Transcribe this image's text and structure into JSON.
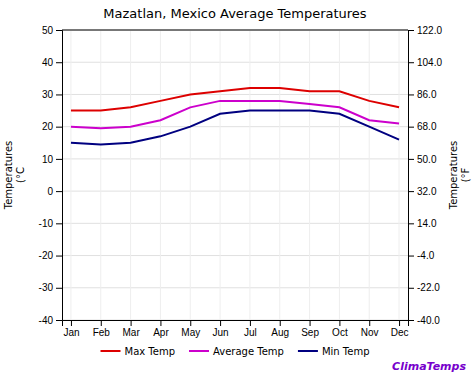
{
  "chart_data": {
    "type": "line",
    "title": "Mazatlan, Mexico Average Temperatures",
    "categories": [
      "Jan",
      "Feb",
      "Mar",
      "Apr",
      "May",
      "Jun",
      "Jul",
      "Aug",
      "Sep",
      "Oct",
      "Nov",
      "Dec"
    ],
    "series": [
      {
        "name": "Max Temp",
        "color": "#dd0000",
        "values": [
          25,
          25,
          26,
          28,
          30,
          31,
          32,
          32,
          31,
          31,
          28,
          26
        ]
      },
      {
        "name": "Average Temp",
        "color": "#cc00cc",
        "values": [
          20,
          19.5,
          20,
          22,
          26,
          28,
          28,
          28,
          27,
          26,
          22,
          21
        ]
      },
      {
        "name": "Min Temp",
        "color": "#000080",
        "values": [
          15,
          14.5,
          15,
          17,
          20,
          24,
          25,
          25,
          25,
          24,
          20,
          16
        ]
      }
    ],
    "ylabel": "Temperatures\n(°C",
    "y2label": "Temperatures\n(°F",
    "ylim": [
      -40,
      50
    ],
    "yticks": [
      -40,
      -30,
      -20,
      -10,
      0,
      10,
      20,
      30,
      40,
      50
    ],
    "y2lim": [
      -40,
      122
    ],
    "y2ticks": [
      {
        "value": -40,
        "label": "-40.0"
      },
      {
        "value": -22,
        "label": "-22.0"
      },
      {
        "value": -4,
        "label": "-4.0"
      },
      {
        "value": 14,
        "label": "14.0"
      },
      {
        "value": 32,
        "label": "32.0"
      },
      {
        "value": 50,
        "label": "50.0"
      },
      {
        "value": 68,
        "label": "68.0"
      },
      {
        "value": 86,
        "label": "86.0"
      },
      {
        "value": 104,
        "label": "104.0"
      },
      {
        "value": 122,
        "label": "122.0"
      }
    ],
    "grid": true,
    "legend": "bottom",
    "annotations": [
      {
        "text": "ClimaTemps",
        "color": "#7700cc"
      }
    ]
  }
}
